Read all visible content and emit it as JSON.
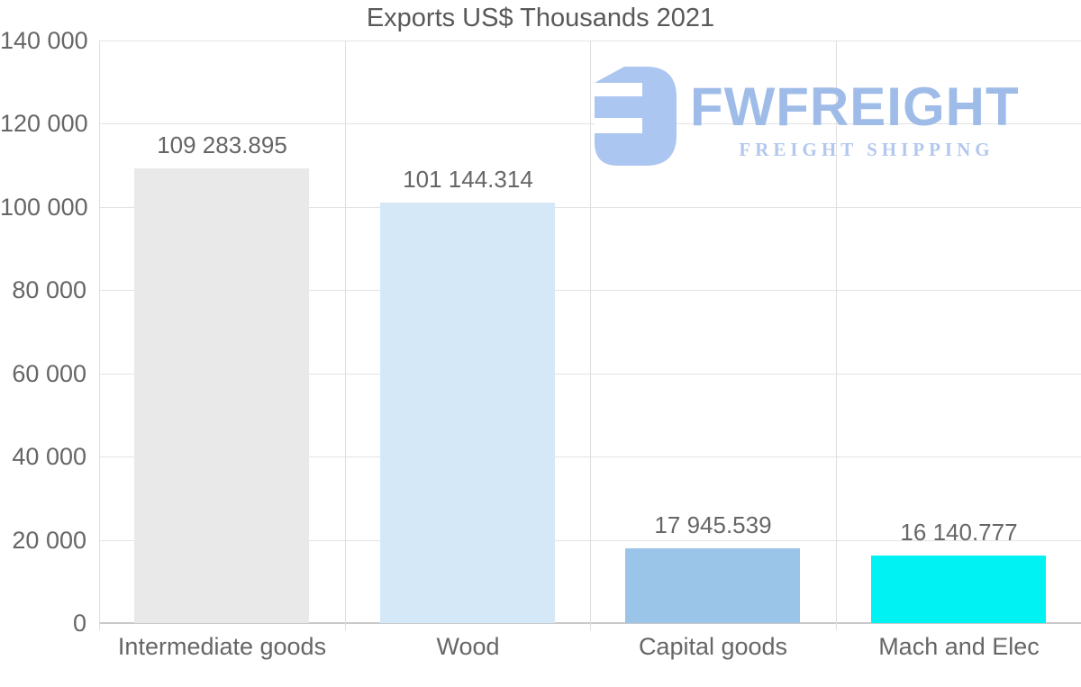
{
  "chart_data": {
    "type": "bar",
    "title": "Exports US$ Thousands 2021",
    "categories": [
      "Intermediate goods",
      "Wood",
      "Capital goods",
      "Mach and Elec"
    ],
    "values": [
      109283.895,
      101144.314,
      17945.539,
      16140.777
    ],
    "value_labels": [
      "109 283.895",
      "101 144.314",
      "17 945.539",
      "16 140.777"
    ],
    "bar_colors": [
      "#e9e9e9",
      "#d5e8f8",
      "#9ac4e8",
      "#00f2f2"
    ],
    "xlabel": "",
    "ylabel": "",
    "ylim": [
      0,
      140000
    ],
    "ytick_step": 20000,
    "ytick_labels": [
      "0",
      "20 000",
      "40 000",
      "60 000",
      "80 000",
      "100 000",
      "120 000",
      "140 000"
    ],
    "grid": true,
    "legend_position": "none"
  },
  "watermark": {
    "brand": "FWFREIGHT",
    "tagline": "FREIGHT SHIPPING",
    "icon_color": "#abc6f0",
    "brand_color": "#9fbce9",
    "tagline_color": "#b3c8ee"
  },
  "colors": {
    "background": "#ffffff",
    "title_text": "#595959",
    "label_text": "#666666",
    "gridline": "#e3e3e3",
    "axis_line": "#c9c9c9"
  }
}
